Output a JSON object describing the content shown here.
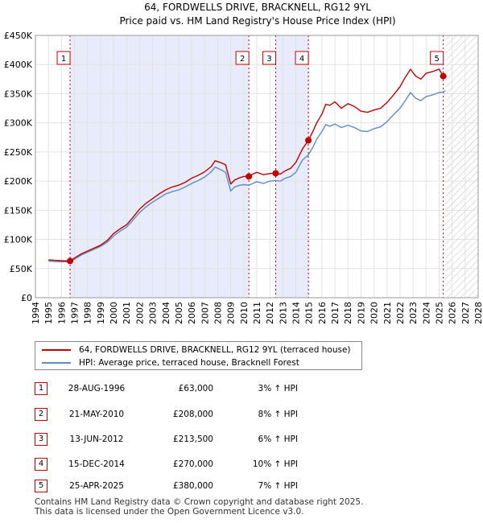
{
  "chart_data": {
    "type": "line",
    "title": "64, FORDWELLS DRIVE, BRACKNELL, RG12 9YL",
    "subtitle": "Price paid vs. HM Land Registry's House Price Index (HPI)",
    "xlim": [
      1994,
      2028
    ],
    "ylim": [
      0,
      450000
    ],
    "x_ticks": [
      1994,
      1995,
      1996,
      1997,
      1998,
      1999,
      2000,
      2001,
      2002,
      2003,
      2004,
      2005,
      2006,
      2007,
      2008,
      2009,
      2010,
      2011,
      2012,
      2013,
      2014,
      2015,
      2016,
      2017,
      2018,
      2019,
      2020,
      2021,
      2022,
      2023,
      2024,
      2025,
      2026,
      2027,
      2028
    ],
    "y_ticks": [
      0,
      50000,
      100000,
      150000,
      200000,
      250000,
      300000,
      350000,
      400000,
      450000
    ],
    "y_tick_labels": [
      "£0",
      "£50K",
      "£100K",
      "£150K",
      "£200K",
      "£250K",
      "£300K",
      "£350K",
      "£400K",
      "£450K"
    ],
    "data_start": 1995.0,
    "data_end": 2025.5,
    "hatch_start": 2025.5,
    "shade_regions": [
      [
        1996.66,
        2010.39
      ],
      [
        2012.45,
        2014.96
      ]
    ],
    "series": [
      {
        "name": "64, FORDWELLS DRIVE, BRACKNELL, RG12 9YL (terraced house)",
        "color": "#c00000",
        "x": [
          1995.0,
          1995.5,
          1996.0,
          1996.66,
          1997.0,
          1997.5,
          1998.0,
          1998.5,
          1999.0,
          1999.5,
          2000.0,
          2000.5,
          2001.0,
          2001.5,
          2002.0,
          2002.5,
          2003.0,
          2003.5,
          2004.0,
          2004.5,
          2005.0,
          2005.5,
          2006.0,
          2006.5,
          2007.0,
          2007.5,
          2007.8,
          2008.2,
          2008.6,
          2009.0,
          2009.3,
          2009.7,
          2010.0,
          2010.39,
          2010.7,
          2011.0,
          2011.5,
          2012.0,
          2012.45,
          2012.8,
          2013.2,
          2013.6,
          2014.0,
          2014.5,
          2014.96,
          2015.3,
          2015.6,
          2016.0,
          2016.3,
          2016.6,
          2017.0,
          2017.5,
          2018.0,
          2018.5,
          2019.0,
          2019.5,
          2020.0,
          2020.5,
          2021.0,
          2021.5,
          2022.0,
          2022.4,
          2022.8,
          2023.2,
          2023.6,
          2024.0,
          2024.5,
          2025.0,
          2025.32,
          2025.5
        ],
        "values": [
          65000,
          64000,
          63500,
          63000,
          68000,
          75000,
          80000,
          85000,
          90000,
          98000,
          110000,
          118000,
          125000,
          138000,
          152000,
          162000,
          170000,
          178000,
          185000,
          190000,
          193000,
          198000,
          205000,
          210000,
          216000,
          225000,
          235000,
          232000,
          228000,
          195000,
          202000,
          206000,
          208000,
          208000,
          212000,
          215000,
          211000,
          213000,
          213500,
          212000,
          218000,
          222000,
          232000,
          255000,
          270000,
          285000,
          300000,
          315000,
          332000,
          330000,
          336000,
          325000,
          333000,
          328000,
          320000,
          318000,
          322000,
          325000,
          335000,
          348000,
          362000,
          378000,
          392000,
          380000,
          375000,
          385000,
          388000,
          392000,
          380000,
          382000
        ]
      },
      {
        "name": "HPI: Average price, terraced house, Bracknell Forest",
        "color": "#5b8ccc",
        "x": [
          1995.0,
          1995.5,
          1996.0,
          1996.66,
          1997.0,
          1997.5,
          1998.0,
          1998.5,
          1999.0,
          1999.5,
          2000.0,
          2000.5,
          2001.0,
          2001.5,
          2002.0,
          2002.5,
          2003.0,
          2003.5,
          2004.0,
          2004.5,
          2005.0,
          2005.5,
          2006.0,
          2006.5,
          2007.0,
          2007.5,
          2007.8,
          2008.2,
          2008.6,
          2009.0,
          2009.3,
          2009.7,
          2010.0,
          2010.39,
          2010.7,
          2011.0,
          2011.5,
          2012.0,
          2012.45,
          2012.8,
          2013.2,
          2013.6,
          2014.0,
          2014.5,
          2014.96,
          2015.3,
          2015.6,
          2016.0,
          2016.3,
          2016.6,
          2017.0,
          2017.5,
          2018.0,
          2018.5,
          2019.0,
          2019.5,
          2020.0,
          2020.5,
          2021.0,
          2021.5,
          2022.0,
          2022.4,
          2022.8,
          2023.2,
          2023.6,
          2024.0,
          2024.5,
          2025.0,
          2025.32,
          2025.5
        ],
        "values": [
          63000,
          62000,
          61500,
          61500,
          66000,
          73000,
          78000,
          83000,
          88000,
          95000,
          106000,
          114000,
          121000,
          133000,
          146000,
          156000,
          164000,
          171000,
          178000,
          182000,
          185000,
          190000,
          196000,
          201000,
          207000,
          216000,
          224000,
          220000,
          215000,
          183000,
          190000,
          193000,
          194000,
          193000,
          196000,
          199000,
          196000,
          200000,
          201000,
          200000,
          205000,
          208000,
          215000,
          236000,
          245000,
          258000,
          272000,
          285000,
          297000,
          294000,
          298000,
          292000,
          296000,
          292000,
          286000,
          285000,
          290000,
          293000,
          302000,
          314000,
          325000,
          338000,
          352000,
          342000,
          338000,
          345000,
          348000,
          352000,
          353000,
          355000
        ]
      }
    ],
    "sales": [
      {
        "num": "1",
        "x": 1996.66,
        "price": 63000,
        "date": "28-AUG-1996",
        "price_label": "£63,000",
        "hpi": "3% ↑ HPI"
      },
      {
        "num": "2",
        "x": 2010.39,
        "price": 208000,
        "date": "21-MAY-2010",
        "price_label": "£208,000",
        "hpi": "8% ↑ HPI"
      },
      {
        "num": "3",
        "x": 2012.45,
        "price": 213500,
        "date": "13-JUN-2012",
        "price_label": "£213,500",
        "hpi": "6% ↑ HPI"
      },
      {
        "num": "4",
        "x": 2014.96,
        "price": 270000,
        "date": "15-DEC-2014",
        "price_label": "£270,000",
        "hpi": "10% ↑ HPI"
      },
      {
        "num": "5",
        "x": 2025.32,
        "price": 380000,
        "date": "25-APR-2025",
        "price_label": "£380,000",
        "hpi": "7% ↑ HPI"
      }
    ]
  },
  "legend": {
    "property": "64, FORDWELLS DRIVE, BRACKNELL, RG12 9YL (terraced house)",
    "hpi": "HPI: Average price, terraced house, Bracknell Forest"
  },
  "colors": {
    "property_line": "#c00000",
    "hpi_line": "#5b8ccc",
    "shade": "#e8ecfa",
    "sale_box": "#c00000"
  },
  "footer": {
    "line1": "Contains HM Land Registry data © Crown copyright and database right 2025.",
    "line2": "This data is licensed under the Open Government Licence v3.0."
  }
}
